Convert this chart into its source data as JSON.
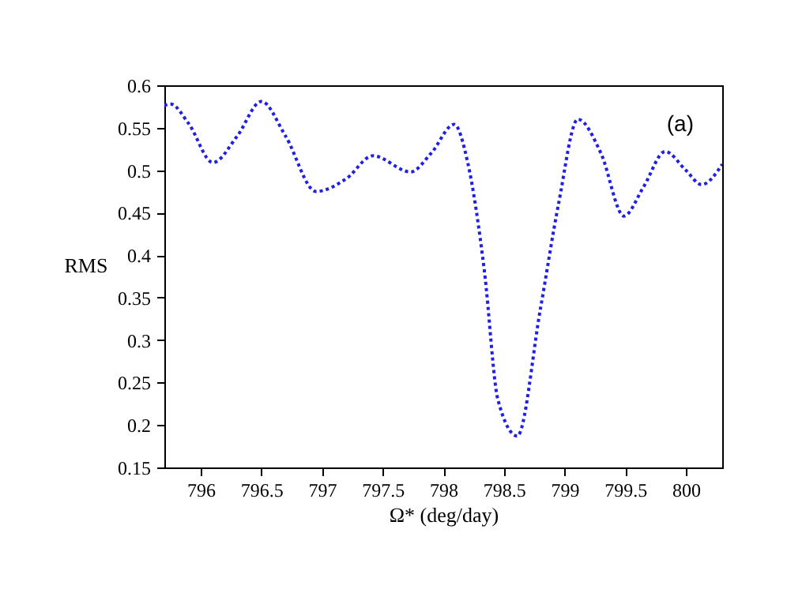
{
  "chart_data": {
    "type": "line",
    "xlabel": "Ω* (deg/day)",
    "ylabel": "RMS",
    "annotations": [
      "(a)"
    ],
    "x": [
      795.7,
      795.75,
      795.9,
      796.1,
      796.3,
      796.5,
      796.7,
      796.95,
      797.2,
      797.42,
      797.73,
      797.9,
      798.09,
      798.2,
      798.34,
      798.45,
      798.61,
      798.8,
      798.95,
      799.11,
      799.3,
      799.49,
      799.65,
      799.83,
      800.0,
      800.13,
      800.3
    ],
    "series": [
      {
        "color": "#1f1fe6",
        "values": [
          0.576,
          0.578,
          0.555,
          0.509,
          0.54,
          0.581,
          0.54,
          0.475,
          0.49,
          0.517,
          0.498,
          0.52,
          0.554,
          0.51,
          0.38,
          0.23,
          0.187,
          0.336,
          0.46,
          0.56,
          0.52,
          0.446,
          0.48,
          0.522,
          0.5,
          0.483,
          0.507
        ]
      }
    ],
    "xlim": [
      795.7,
      800.3
    ],
    "ylim": [
      0.15,
      0.6
    ],
    "xticks": [
      796,
      796.5,
      797,
      797.5,
      798,
      798.5,
      799,
      799.5,
      800
    ],
    "yticks": [
      0.15,
      0.2,
      0.25,
      0.3,
      0.35,
      0.4,
      0.45,
      0.5,
      0.55,
      0.6
    ],
    "grid": false,
    "marker": "none",
    "line_style": "dotted"
  }
}
